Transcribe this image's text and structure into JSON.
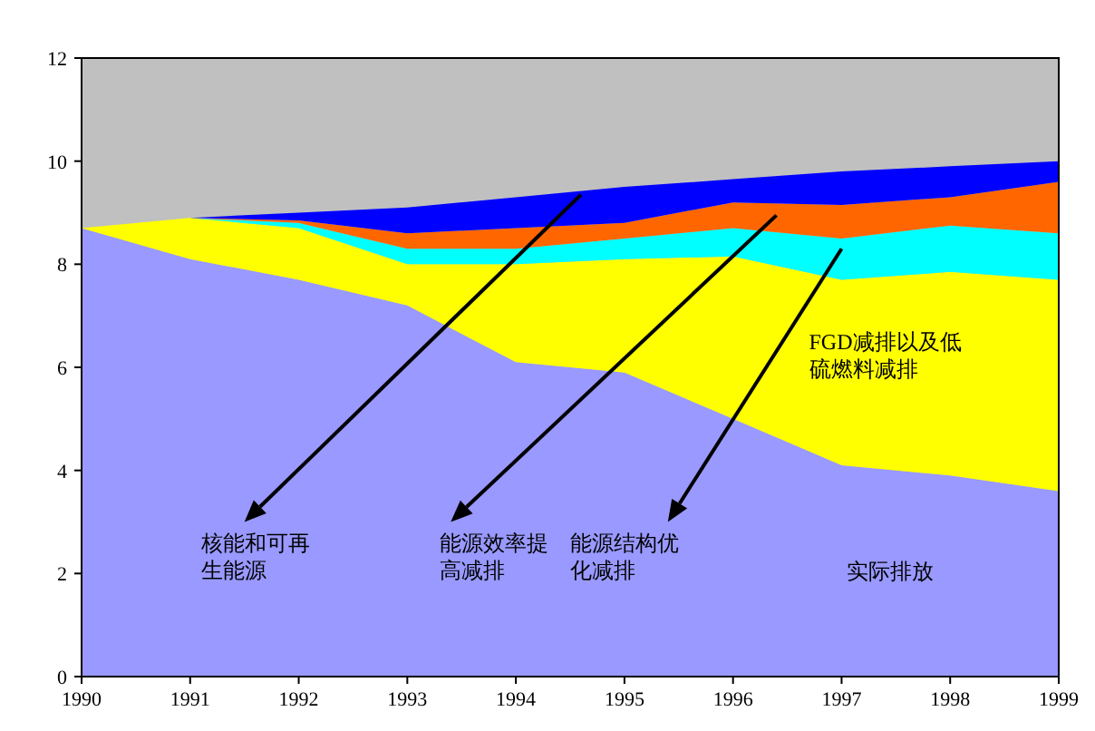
{
  "chart_data": {
    "type": "area",
    "stacked": true,
    "x": [
      1990,
      1991,
      1992,
      1993,
      1994,
      1995,
      1996,
      1997,
      1998,
      1999
    ],
    "series": [
      {
        "name": "实际排放",
        "color": "#9999ff",
        "values": [
          8.7,
          8.1,
          7.7,
          7.2,
          6.1,
          5.9,
          5.0,
          4.1,
          3.9,
          3.6
        ]
      },
      {
        "name": "FGD减排以及低硫燃料减排",
        "color": "#ffff00",
        "values": [
          0,
          0.8,
          1.0,
          0.8,
          1.9,
          2.2,
          3.15,
          3.6,
          3.95,
          4.1
        ]
      },
      {
        "name": "能源结构优化减排",
        "color": "#00ffff",
        "values": [
          0,
          0,
          0.1,
          0.3,
          0.3,
          0.4,
          0.55,
          0.8,
          0.9,
          0.9
        ]
      },
      {
        "name": "能源效率提高减排",
        "color": "#ff6600",
        "values": [
          0,
          0,
          0.05,
          0.3,
          0.4,
          0.3,
          0.5,
          0.65,
          0.55,
          1.0
        ]
      },
      {
        "name": "核能和可再生能源",
        "color": "#0000ff",
        "values": [
          0,
          0,
          0.15,
          0.5,
          0.6,
          0.7,
          0.45,
          0.65,
          0.6,
          0.4
        ]
      }
    ],
    "xlim": [
      1990,
      1999
    ],
    "ylim": [
      0,
      12
    ],
    "xticks": [
      1990,
      1991,
      1992,
      1993,
      1994,
      1995,
      1996,
      1997,
      1998,
      1999
    ],
    "yticks": [
      0,
      2,
      4,
      6,
      8,
      10,
      12
    ],
    "grid": false
  }
}
